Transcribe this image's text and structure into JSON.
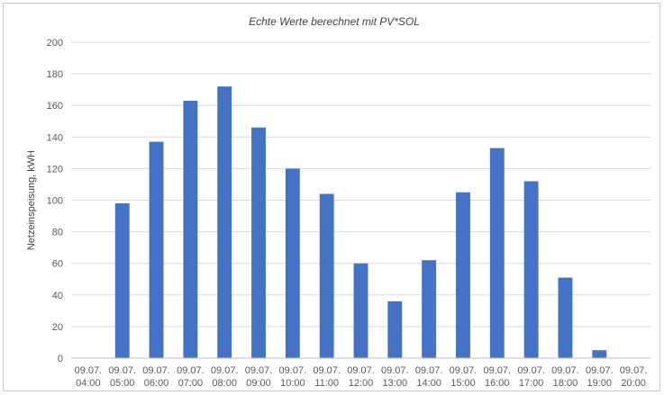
{
  "chart_data": {
    "type": "bar",
    "title": "Echte Werte berechnet mit PV*SOL",
    "xlabel": "",
    "ylabel": "Netzeinspeisung, kWH",
    "ylim": [
      0,
      200
    ],
    "yticks": [
      "0",
      "20",
      "40",
      "60",
      "80",
      "100",
      "120",
      "140",
      "160",
      "180",
      "200"
    ],
    "grid": true,
    "legend": "none",
    "bar_color": "#4472c4",
    "categories": [
      [
        "09.07.",
        "04:00"
      ],
      [
        "09.07.",
        "05:00"
      ],
      [
        "09.07.",
        "06:00"
      ],
      [
        "09.07.",
        "07:00"
      ],
      [
        "09.07.",
        "08:00"
      ],
      [
        "09.07.",
        "09:00"
      ],
      [
        "09.07.",
        "10:00"
      ],
      [
        "09.07.",
        "11:00"
      ],
      [
        "09.07.",
        "12:00"
      ],
      [
        "09.07.",
        "13:00"
      ],
      [
        "09.07.",
        "14:00"
      ],
      [
        "09.07.",
        "15:00"
      ],
      [
        "09.07.",
        "16:00"
      ],
      [
        "09.07.",
        "17:00"
      ],
      [
        "09.07.",
        "18:00"
      ],
      [
        "09.07.",
        "19:00"
      ],
      [
        "09.07.",
        "20:00"
      ]
    ],
    "values": [
      0,
      98,
      137,
      163,
      172,
      146,
      120,
      104,
      60,
      36,
      62,
      105,
      133,
      112,
      51,
      5,
      0
    ]
  }
}
